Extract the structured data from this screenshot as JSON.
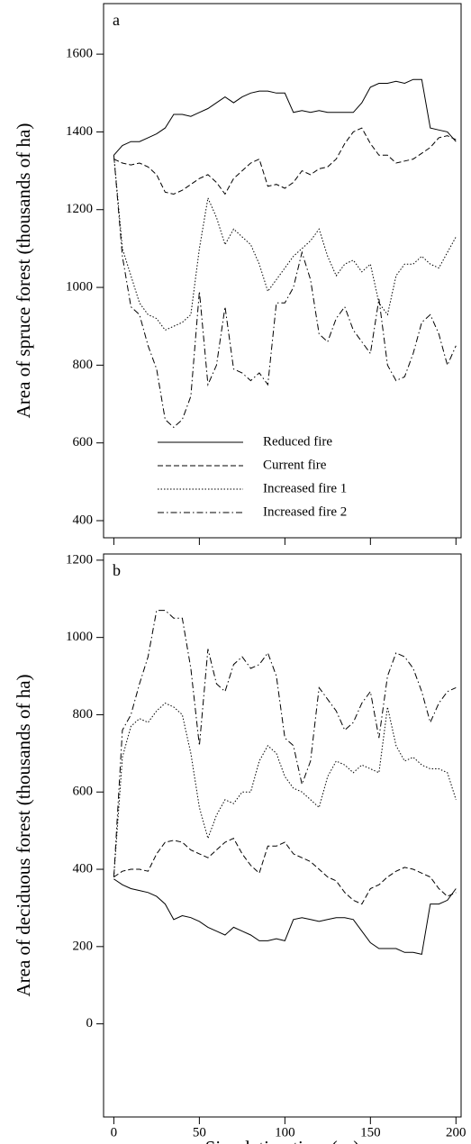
{
  "chart_data": [
    {
      "type": "line",
      "label": "a",
      "ylabel": "Area of spruce forest (thousands of ha)",
      "x": [
        0,
        5,
        10,
        15,
        20,
        25,
        30,
        35,
        40,
        45,
        50,
        55,
        60,
        65,
        70,
        75,
        80,
        85,
        90,
        95,
        100,
        105,
        110,
        115,
        120,
        125,
        130,
        135,
        140,
        145,
        150,
        155,
        160,
        165,
        170,
        175,
        180,
        185,
        190,
        195,
        200
      ],
      "xlim": [
        -6,
        203
      ],
      "xticks": [
        0,
        50,
        100,
        150,
        200
      ],
      "show_xtick_labels": false,
      "ylim": [
        356,
        1730
      ],
      "yticks": [
        400,
        600,
        800,
        1000,
        1200,
        1400,
        1600
      ],
      "legend": "lower center",
      "series": [
        {
          "name": "Reduced fire",
          "color": "#000000",
          "line_style": "solid",
          "values": [
            1340,
            1365,
            1375,
            1375,
            1385,
            1395,
            1410,
            1445,
            1445,
            1440,
            1450,
            1460,
            1475,
            1490,
            1475,
            1490,
            1500,
            1505,
            1505,
            1500,
            1500,
            1450,
            1455,
            1450,
            1455,
            1450,
            1450,
            1450,
            1450,
            1475,
            1515,
            1525,
            1525,
            1530,
            1525,
            1535,
            1535,
            1410,
            1405,
            1400,
            1375
          ]
        },
        {
          "name": "Current fire",
          "color": "#000000",
          "line_style": "dashed",
          "values": [
            1330,
            1320,
            1315,
            1320,
            1310,
            1290,
            1245,
            1240,
            1250,
            1265,
            1280,
            1290,
            1270,
            1240,
            1280,
            1300,
            1320,
            1330,
            1260,
            1265,
            1255,
            1270,
            1300,
            1290,
            1305,
            1310,
            1330,
            1370,
            1400,
            1410,
            1370,
            1340,
            1340,
            1320,
            1325,
            1330,
            1345,
            1360,
            1385,
            1390,
            1380
          ]
        },
        {
          "name": "Increased fire 1",
          "color": "#000000",
          "line_style": "dotted",
          "values": [
            1340,
            1100,
            1030,
            960,
            930,
            920,
            890,
            900,
            910,
            930,
            1100,
            1230,
            1180,
            1110,
            1150,
            1130,
            1110,
            1060,
            990,
            1020,
            1050,
            1080,
            1100,
            1120,
            1150,
            1080,
            1030,
            1060,
            1070,
            1040,
            1060,
            960,
            930,
            1030,
            1060,
            1060,
            1080,
            1060,
            1050,
            1090,
            1130
          ]
        },
        {
          "name": "Increased fire 2",
          "color": "#000000",
          "line_style": "dashdot",
          "values": [
            1340,
            1080,
            950,
            930,
            850,
            790,
            660,
            640,
            660,
            720,
            990,
            750,
            800,
            950,
            790,
            780,
            760,
            780,
            750,
            960,
            960,
            1000,
            1090,
            1020,
            880,
            860,
            920,
            950,
            890,
            860,
            830,
            970,
            800,
            760,
            770,
            830,
            910,
            930,
            880,
            800,
            850
          ]
        }
      ]
    },
    {
      "type": "line",
      "label": "b",
      "ylabel": "Area of deciduous forest (thousands of ha)",
      "xlabel": "Simulation time (yr)",
      "x": [
        0,
        5,
        10,
        15,
        20,
        25,
        30,
        35,
        40,
        45,
        50,
        55,
        60,
        65,
        70,
        75,
        80,
        85,
        90,
        95,
        100,
        105,
        110,
        115,
        120,
        125,
        130,
        135,
        140,
        145,
        150,
        155,
        160,
        165,
        170,
        175,
        180,
        185,
        190,
        195,
        200
      ],
      "xlim": [
        -6,
        203
      ],
      "xticks": [
        0,
        50,
        100,
        150,
        200
      ],
      "show_xtick_labels": true,
      "ylim": [
        -241,
        1216
      ],
      "yticks": [
        0,
        200,
        400,
        600,
        800,
        1000,
        1200
      ],
      "series": [
        {
          "name": "Reduced fire",
          "color": "#000000",
          "line_style": "solid",
          "values": [
            375,
            360,
            350,
            345,
            340,
            330,
            310,
            270,
            280,
            275,
            265,
            250,
            240,
            230,
            250,
            240,
            230,
            215,
            215,
            220,
            215,
            270,
            275,
            270,
            265,
            270,
            275,
            275,
            270,
            240,
            210,
            195,
            195,
            195,
            185,
            185,
            180,
            310,
            310,
            320,
            350
          ]
        },
        {
          "name": "Current fire",
          "color": "#000000",
          "line_style": "dashed",
          "values": [
            380,
            395,
            400,
            400,
            395,
            440,
            470,
            475,
            470,
            450,
            440,
            430,
            450,
            470,
            480,
            440,
            410,
            390,
            460,
            460,
            470,
            440,
            430,
            420,
            400,
            380,
            370,
            340,
            320,
            310,
            350,
            360,
            380,
            395,
            405,
            400,
            390,
            380,
            350,
            330,
            340
          ]
        },
        {
          "name": "Increased fire 1",
          "color": "#000000",
          "line_style": "dotted",
          "values": [
            380,
            690,
            770,
            790,
            780,
            810,
            830,
            820,
            800,
            700,
            560,
            480,
            540,
            580,
            570,
            600,
            600,
            680,
            720,
            700,
            640,
            610,
            600,
            580,
            560,
            640,
            680,
            670,
            650,
            670,
            660,
            650,
            820,
            720,
            680,
            690,
            670,
            660,
            660,
            650,
            580
          ]
        },
        {
          "name": "Increased fire 2",
          "color": "#000000",
          "line_style": "dashdot",
          "values": [
            380,
            760,
            800,
            880,
            950,
            1070,
            1070,
            1050,
            1050,
            920,
            720,
            970,
            880,
            860,
            930,
            950,
            920,
            930,
            960,
            900,
            740,
            720,
            620,
            680,
            870,
            840,
            810,
            760,
            780,
            830,
            860,
            740,
            900,
            960,
            950,
            920,
            860,
            780,
            830,
            860,
            870
          ]
        }
      ]
    }
  ]
}
